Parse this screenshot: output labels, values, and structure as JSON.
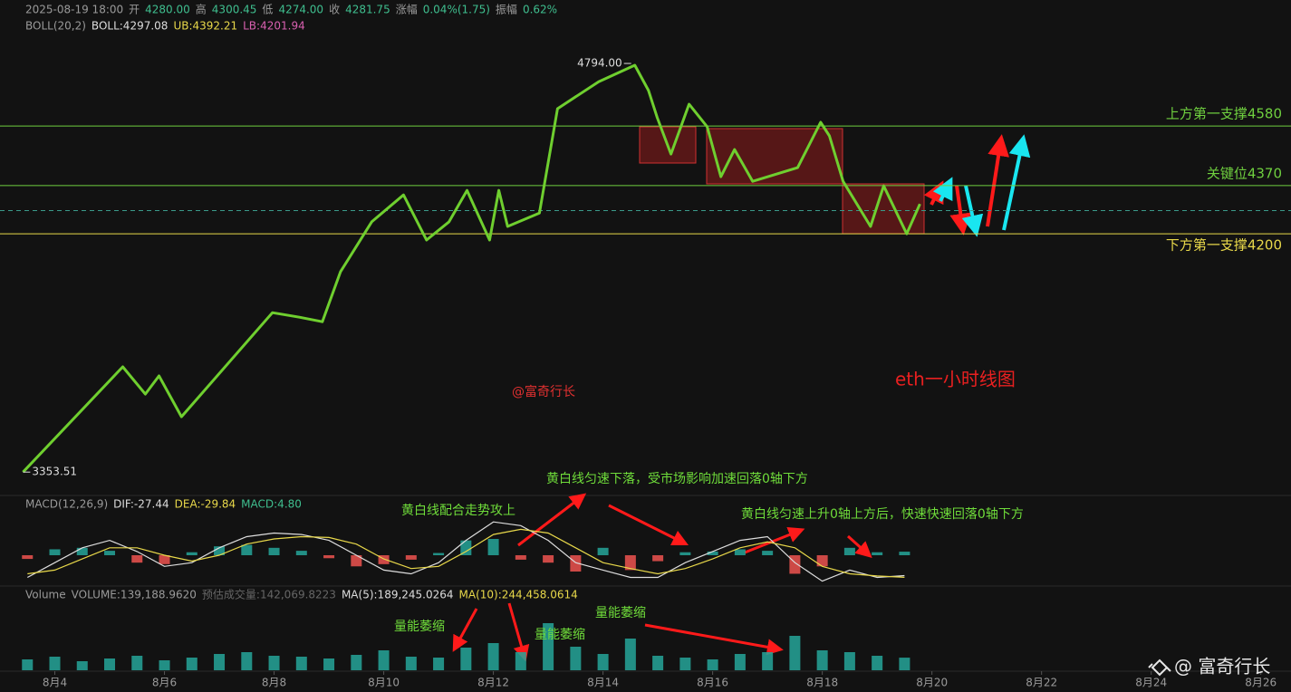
{
  "legends": {
    "price": [
      {
        "text": "2025-08-19 18:00",
        "color": "#9a9a9a"
      },
      {
        "text": "开",
        "color": "#9a9a9a"
      },
      {
        "text": "4280.00",
        "color": "#3fbf8f"
      },
      {
        "text": "高",
        "color": "#9a9a9a"
      },
      {
        "text": "4300.45",
        "color": "#3fbf8f"
      },
      {
        "text": "低",
        "color": "#9a9a9a"
      },
      {
        "text": "4274.00",
        "color": "#3fbf8f"
      },
      {
        "text": "收",
        "color": "#9a9a9a"
      },
      {
        "text": "4281.75",
        "color": "#3fbf8f"
      },
      {
        "text": "涨幅",
        "color": "#9a9a9a"
      },
      {
        "text": "0.04%(1.75)",
        "color": "#3fbf8f"
      },
      {
        "text": "振幅",
        "color": "#9a9a9a"
      },
      {
        "text": "0.62%",
        "color": "#3fbf8f"
      }
    ],
    "boll": [
      {
        "text": "BOLL(20,2)",
        "color": "#9a9a9a"
      },
      {
        "text": "BOLL:4297.08",
        "color": "#dddddd"
      },
      {
        "text": "UB:4392.21",
        "color": "#e8d84a"
      },
      {
        "text": "LB:4201.94",
        "color": "#d860b0"
      }
    ],
    "macd": [
      {
        "text": "MACD(12,26,9)",
        "color": "#9a9a9a"
      },
      {
        "text": "DIF:-27.44",
        "color": "#dddddd"
      },
      {
        "text": "DEA:-29.84",
        "color": "#e8d84a"
      },
      {
        "text": "MACD:4.80",
        "color": "#3fbf8f"
      }
    ],
    "volume": [
      {
        "text": "Volume",
        "color": "#9a9a9a"
      },
      {
        "text": "VOLUME:139,188.9620",
        "color": "#9a9a9a"
      },
      {
        "text": "预估成交量:142,069.8223",
        "color": "#666666"
      },
      {
        "text": "MA(5):189,245.0264",
        "color": "#dddddd"
      },
      {
        "text": "MA(10):244,458.0614",
        "color": "#e8d84a"
      }
    ]
  },
  "annotations": [
    {
      "text": "@富奇行长",
      "color": "#e03030"
    },
    {
      "text": "eth一小时线图",
      "color": "#e82020"
    },
    {
      "text": "黄白线匀速下落，受市场影响加速回落0轴下方",
      "color": "#6fdc3a"
    },
    {
      "text": "黄白线配合走势攻上",
      "color": "#6fdc3a"
    },
    {
      "text": "黄白线匀速上升0轴上方后，快速快速回落0轴下方",
      "color": "#6fdc3a"
    },
    {
      "text": "量能萎缩",
      "color": "#6fdc3a"
    },
    {
      "text": "量能萎缩",
      "color": "#6fdc3a"
    },
    {
      "text": "量能萎缩",
      "color": "#6fdc3a"
    },
    {
      "text": "@ 富奇行长",
      "color": "#e6e6e6"
    }
  ],
  "chart_data": [
    {
      "type": "line",
      "color": "#6fcf2f",
      "xlim": [
        3.0,
        26.55
      ],
      "ylim": [
        3300,
        5024
      ],
      "x": [
        3.42,
        5.24,
        5.65,
        5.9,
        6.31,
        7.97,
        8.46,
        8.88,
        9.21,
        9.78,
        10.36,
        10.78,
        11.19,
        11.52,
        11.93,
        12.1,
        12.26,
        12.84,
        13.17,
        13.92,
        14.58,
        14.83,
        14.99,
        15.24,
        15.57,
        15.9,
        16.15,
        16.4,
        16.73,
        17.55,
        17.97,
        18.13,
        18.38,
        18.88,
        19.12,
        19.54,
        19.78
      ],
      "values": [
        3360,
        3731,
        3635,
        3699,
        3555,
        3922,
        3906,
        3890,
        4066,
        4242,
        4337,
        4178,
        4242,
        4353,
        4178,
        4353,
        4226,
        4273,
        4641,
        4736,
        4794,
        4705,
        4609,
        4481,
        4657,
        4577,
        4401,
        4497,
        4385,
        4433,
        4593,
        4545,
        4385,
        4226,
        4369,
        4200,
        4305
      ],
      "high_label": "4794.00",
      "low_label": "3353.51",
      "last_price": 4281.75,
      "last_price_color": "#3a9a8a",
      "levels": [
        {
          "value": 4580,
          "label": "上方第一支撑4580",
          "color": "#6fcf3f"
        },
        {
          "value": 4370,
          "label": "关键位4370",
          "color": "#6fcf3f"
        },
        {
          "value": 4200,
          "label": "下方第一支撑4200",
          "color": "#e8d84a"
        }
      ]
    },
    {
      "type": "bar",
      "xlim": [
        3.0,
        26.55
      ],
      "ylim": [
        -55,
        55
      ],
      "up_color": "#26a69a",
      "down_color": "#ef5350",
      "x": [
        3.5,
        4,
        4.5,
        5,
        5.5,
        6,
        6.5,
        7,
        7.5,
        8,
        8.5,
        9,
        9.5,
        10,
        10.5,
        11,
        11.5,
        12,
        12.5,
        13,
        13.5,
        14,
        14.5,
        15,
        15.5,
        16,
        16.5,
        17,
        17.5,
        18,
        18.5,
        19,
        19.5
      ],
      "values": [
        -5,
        8,
        10,
        6,
        -10,
        -12,
        4,
        12,
        14,
        10,
        6,
        -4,
        -15,
        -12,
        -6,
        3,
        20,
        22,
        -6,
        -10,
        -22,
        10,
        -20,
        -8,
        4,
        5,
        8,
        6,
        -25,
        -15,
        10,
        4,
        4.8
      ],
      "lines": [
        {
          "color": "#dddddd",
          "values": [
            -30,
            -10,
            10,
            20,
            5,
            -15,
            -10,
            10,
            25,
            30,
            28,
            20,
            0,
            -20,
            -25,
            -10,
            20,
            45,
            40,
            20,
            -10,
            -20,
            -30,
            -30,
            -10,
            5,
            20,
            25,
            -10,
            -35,
            -20,
            -30,
            -27.44
          ]
        },
        {
          "color": "#e8d84a",
          "values": [
            -25,
            -20,
            -5,
            10,
            10,
            0,
            -8,
            0,
            15,
            22,
            25,
            24,
            15,
            -5,
            -18,
            -15,
            5,
            28,
            35,
            30,
            10,
            -10,
            -18,
            -25,
            -18,
            -5,
            10,
            18,
            10,
            -15,
            -25,
            -28,
            -29.84
          ]
        }
      ]
    },
    {
      "type": "bar",
      "xlim": [
        3.0,
        26.55
      ],
      "ylim": [
        0,
        600000
      ],
      "color": "#26a69a",
      "x": [
        3.5,
        4,
        4.5,
        5,
        5.5,
        6,
        6.5,
        7,
        7.5,
        8,
        8.5,
        9,
        9.5,
        10,
        10.5,
        11,
        11.5,
        12,
        12.5,
        13,
        13.5,
        14,
        14.5,
        15,
        15.5,
        16,
        16.5,
        17,
        17.5,
        18,
        18.5,
        19,
        19.5
      ],
      "values": [
        120000,
        150000,
        100000,
        130000,
        160000,
        110000,
        140000,
        180000,
        200000,
        160000,
        150000,
        130000,
        170000,
        220000,
        150000,
        140000,
        250000,
        300000,
        200000,
        520000,
        260000,
        180000,
        350000,
        160000,
        140000,
        120000,
        180000,
        200000,
        380000,
        220000,
        200000,
        160000,
        139188.962
      ],
      "xticks": [
        {
          "value": 4,
          "label": "8月4"
        },
        {
          "value": 6,
          "label": "8月6"
        },
        {
          "value": 8,
          "label": "8月8"
        },
        {
          "value": 10,
          "label": "8月10"
        },
        {
          "value": 12,
          "label": "8月12"
        },
        {
          "value": 14,
          "label": "8月14"
        },
        {
          "value": 16,
          "label": "8月16"
        },
        {
          "value": 18,
          "label": "8月18"
        },
        {
          "value": 20,
          "label": "8月20"
        },
        {
          "value": 22,
          "label": "8月22"
        },
        {
          "value": 24,
          "label": "8月24"
        },
        {
          "value": 26,
          "label": "8月26"
        }
      ]
    }
  ]
}
